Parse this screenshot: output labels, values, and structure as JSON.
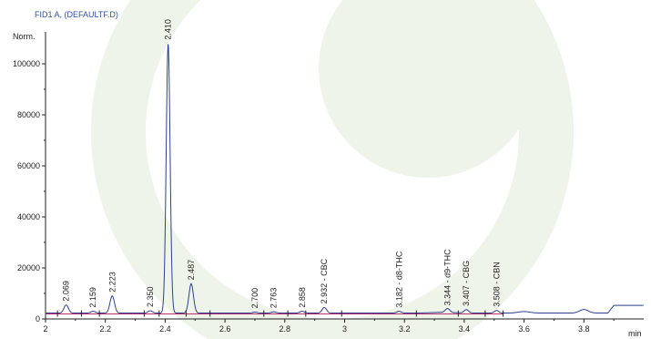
{
  "header": {
    "title": "FID1 A,  (DEFAULTF.D)"
  },
  "colors": {
    "trace": "#2e3f8f",
    "baseline": "#c0306a",
    "axis": "#222222",
    "watermark": "#eef4e9"
  },
  "chart_data": {
    "type": "line",
    "title": "FID1 A,  (DEFAULTF.D)",
    "xlabel": "min",
    "ylabel": "Norm.",
    "xlim": [
      2.0,
      4.0
    ],
    "ylim": [
      -2000,
      110000
    ],
    "x_ticks": [
      "2",
      "2.2",
      "2.4",
      "2.6",
      "2.8",
      "3",
      "3.2",
      "3.4",
      "3.6",
      "3.8"
    ],
    "y_ticks": [
      "0",
      "20000",
      "40000",
      "60000",
      "80000",
      "100000"
    ],
    "x_tick_values": [
      2.0,
      2.2,
      2.4,
      2.6,
      2.8,
      3.0,
      3.2,
      3.4,
      3.6,
      3.8
    ],
    "y_tick_values": [
      0,
      20000,
      40000,
      60000,
      80000,
      100000
    ],
    "grid": false,
    "baseline": 2300,
    "peaks": [
      {
        "rt": 2.069,
        "height": 5500,
        "label": "2.069"
      },
      {
        "rt": 2.159,
        "height": 3000,
        "label": "2.159"
      },
      {
        "rt": 2.223,
        "height": 9000,
        "label": "2.223"
      },
      {
        "rt": 2.35,
        "height": 3200,
        "label": "2.350"
      },
      {
        "rt": 2.41,
        "height": 108000,
        "label": "2.410"
      },
      {
        "rt": 2.487,
        "height": 13800,
        "label": "2.487"
      },
      {
        "rt": 2.7,
        "height": 2700,
        "label": "2.700"
      },
      {
        "rt": 2.763,
        "height": 2800,
        "label": "2.763"
      },
      {
        "rt": 2.858,
        "height": 3000,
        "label": "2.858"
      },
      {
        "rt": 2.932,
        "height": 4500,
        "label": "2.932 - CBC"
      },
      {
        "rt": 3.182,
        "height": 3000,
        "label": "3.182 - d8-THC"
      },
      {
        "rt": 3.344,
        "height": 3800,
        "label": "3.344 - d9-THC"
      },
      {
        "rt": 3.407,
        "height": 3600,
        "label": "3.407 - CBG"
      },
      {
        "rt": 3.508,
        "height": 3300,
        "label": "3.508 - CBN"
      }
    ]
  }
}
